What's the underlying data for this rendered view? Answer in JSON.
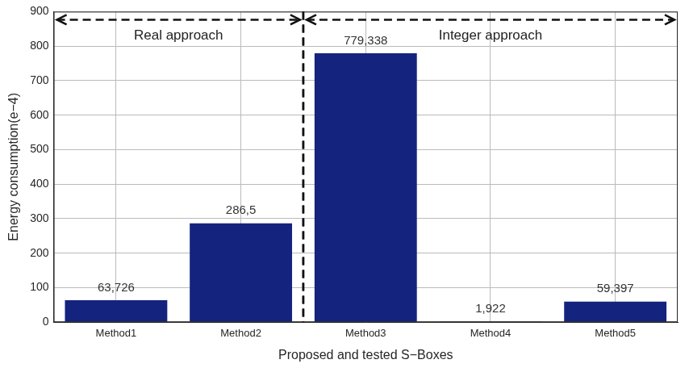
{
  "chart_data": {
    "type": "bar",
    "categories": [
      "Method1",
      "Method2",
      "Method3",
      "Method4",
      "Method5"
    ],
    "values": [
      63.726,
      286.5,
      779.338,
      1.922,
      59.397
    ],
    "value_labels": [
      "63,726",
      "286,5",
      "779,338",
      "1,922",
      "59,397"
    ],
    "color": "#14237e",
    "ylim": [
      0,
      900
    ],
    "yticks": [
      0,
      100,
      200,
      300,
      400,
      500,
      600,
      700,
      800,
      900
    ],
    "x_label": "Proposed and tested S−Boxes",
    "y_label": "Energy consumption(e−4)",
    "grid": true,
    "data_labels": true,
    "annotations": [
      {
        "text": "Real approach",
        "from": "Method1",
        "to": "Method2"
      },
      {
        "text": "Integer approach",
        "from": "Method3",
        "to": "Method5"
      }
    ]
  }
}
